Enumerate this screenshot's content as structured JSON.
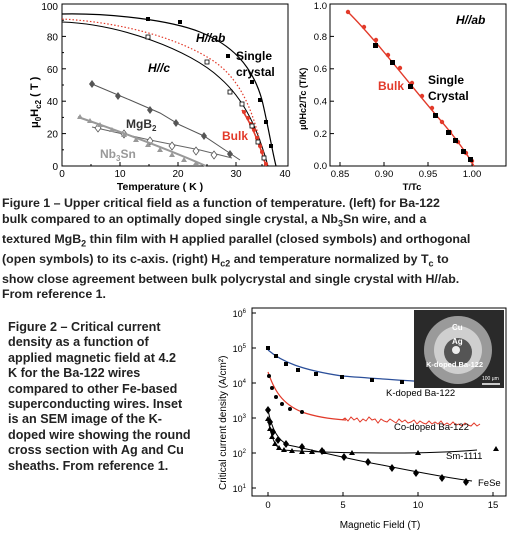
{
  "figure1": {
    "left_panel": {
      "y_axis_label_main": "μ",
      "y_axis_label_sub0": "0",
      "y_axis_label_mid": "H",
      "y_axis_label_subc": "c2",
      "y_axis_label_unit": " ( T )",
      "x_axis_label": "Temperature ( K )",
      "x_ticks": [
        "0",
        "10",
        "20",
        "30",
        "40"
      ],
      "y_ticks": [
        "0",
        "20",
        "40",
        "60",
        "80",
        "100"
      ],
      "labels": {
        "h_ab": "H//ab",
        "h_c": "H//c",
        "single_crystal_1": "Single",
        "single_crystal_2": "crystal",
        "bulk": "Bulk",
        "mgb2_main": "MgB",
        "mgb2_sub": "2",
        "nb3sn_a": "Nb",
        "nb3sn_sub": "3",
        "nb3sn_b": "Sn"
      }
    },
    "right_panel": {
      "y_axis_label": "μ0Hc2/Tc (T/K)",
      "x_axis_label": "T/Tc",
      "x_ticks": [
        "0.85",
        "0.90",
        "0.95",
        "1.00"
      ],
      "y_ticks": [
        "0.0",
        "0.2",
        "0.4",
        "0.6",
        "0.8",
        "1.0"
      ],
      "labels": {
        "h_ab": "H//ab",
        "bulk": "Bulk",
        "single_crystal_1": "Single",
        "single_crystal_2": "Crystal"
      }
    },
    "caption": {
      "l1": "Figure 1 – Upper critical field as a function of temperature. (left) for Ba-122",
      "l2": "bulk compared to an optimally doped single crystal, a Nb",
      "l2_sub": "3",
      "l2_b": "Sn wire, and a",
      "l3a": "textured MgB",
      "l3_sub": "2",
      "l3b": " thin film with H applied parallel (closed symbols) and orthogonal",
      "l4": "(open symbols) to its c-axis.  (right) H",
      "l4_sub": "c2",
      "l4b": " and temperature normalized by T",
      "l4_sub2": "c",
      "l4c": " to",
      "l5": "show close agreement between bulk polycrystal and single crystal with H//ab.",
      "l6": "From reference 1."
    }
  },
  "figure2": {
    "y_axis_label": "Critical current density (A/cm²)",
    "x_axis_label": "Magnetic Field (T)",
    "x_ticks": [
      "0",
      "5",
      "10",
      "15"
    ],
    "y_ticks": [
      {
        "base": "10",
        "exp": "1"
      },
      {
        "base": "10",
        "exp": "2"
      },
      {
        "base": "10",
        "exp": "3"
      },
      {
        "base": "10",
        "exp": "4"
      },
      {
        "base": "10",
        "exp": "5"
      },
      {
        "base": "10",
        "exp": "6"
      }
    ],
    "series_labels": {
      "k_doped": "K-doped Ba-122",
      "co_doped": "Co-doped Ba-122",
      "sm1111": "Sm-1111",
      "fese": "FeSe"
    },
    "inset": {
      "cu": "Cu",
      "ag": "Ag",
      "core": "K-doped Ba-122",
      "scale": "100 μm"
    },
    "caption": [
      "Figure 2 – Critical current",
      "density as a function of",
      "applied magnetic field at 4.2",
      "K for the Ba-122 wires",
      "compared to other Fe-based",
      "superconducting wires. Inset",
      "is an SEM image of the K-",
      "doped wire showing the round",
      "cross section with Ag and Cu",
      "sheaths. From reference 1."
    ]
  }
}
